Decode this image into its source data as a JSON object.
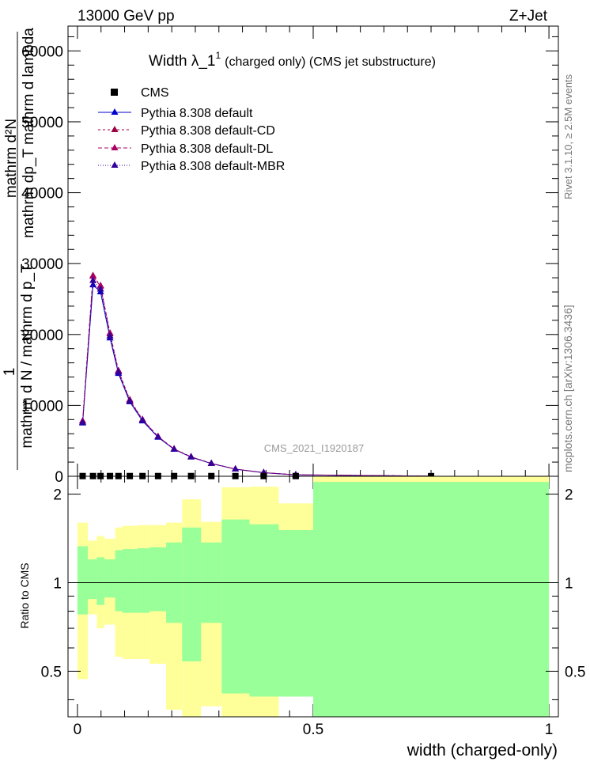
{
  "header": {
    "left": "13000 GeV pp",
    "right": "Z+Jet"
  },
  "title": {
    "main": "Width λ_1",
    "sup": "1",
    "suffix": "(charged only) (CMS jet substructure)"
  },
  "side": {
    "rivet": "Rivet 3.1.10, ≥ 2.5M events",
    "mcplots": "mcplots.cern.ch [arXiv:1306.3436]"
  },
  "analysis_tag": "CMS_2021_I1920187",
  "ylabel_top": {
    "frac_num": "1",
    "line1": "mathrm d²N",
    "line2": "mathrm dp_T mathrm d lambda",
    "line3": "mathrm d N / mathrm d p_T"
  },
  "ylabel_bottom": "Ratio to CMS",
  "xlabel": "width (charged-only)",
  "legend": {
    "cms": "CMS",
    "default": "Pythia 8.308 default",
    "cd": "Pythia 8.308 default-CD",
    "dl": "Pythia 8.308 default-DL",
    "mbr": "Pythia 8.308 default-MBR"
  },
  "colors": {
    "cms": "#000000",
    "default": "#0000cc",
    "cd": "#990044",
    "dl": "#aa0066",
    "mbr": "#330099",
    "band_inner": "#99ff99",
    "band_outer": "#ffff99"
  },
  "chart_data": {
    "type": "line",
    "xlim": [
      -0.02,
      1.02
    ],
    "ylim_top": [
      0,
      63500
    ],
    "ylim_ratio": [
      0.35,
      2.3
    ],
    "x_ticks": [
      "0",
      "0.5",
      "1"
    ],
    "y_ticks_top": [
      "0",
      "10000",
      "20000",
      "30000",
      "40000",
      "50000",
      "60000"
    ],
    "y_ticks_ratio": [
      "0.5",
      "1",
      "2"
    ],
    "x": [
      0.011,
      0.033,
      0.049,
      0.069,
      0.087,
      0.111,
      0.138,
      0.171,
      0.205,
      0.241,
      0.284,
      0.335,
      0.395,
      0.463,
      0.75
    ],
    "cms_values": [
      30,
      30,
      30,
      30,
      30,
      30,
      30,
      30,
      30,
      30,
      30,
      30,
      30,
      30,
      20
    ],
    "series": [
      {
        "name": "Pythia 8.308 default",
        "values": [
          7500,
          27000,
          26000,
          19500,
          14500,
          10500,
          7800,
          5500,
          3800,
          2700,
          1800,
          1000,
          500,
          200,
          20
        ]
      },
      {
        "name": "Pythia 8.308 default-CD",
        "values": [
          7800,
          28300,
          26900,
          20200,
          14900,
          10800,
          8000,
          5600,
          3850,
          2750,
          1820,
          1020,
          510,
          210,
          20
        ]
      },
      {
        "name": "Pythia 8.308 default-DL",
        "values": [
          7800,
          28200,
          26800,
          20100,
          14800,
          10700,
          8000,
          5600,
          3850,
          2750,
          1820,
          1020,
          510,
          210,
          20
        ]
      },
      {
        "name": "Pythia 8.308 default-MBR",
        "values": [
          7600,
          27600,
          26400,
          19800,
          14700,
          10600,
          7900,
          5550,
          3820,
          2720,
          1810,
          1010,
          505,
          205,
          20
        ]
      }
    ],
    "ratio_bins": [
      0.0,
      0.022,
      0.041,
      0.057,
      0.08,
      0.095,
      0.127,
      0.153,
      0.188,
      0.222,
      0.262,
      0.306,
      0.365,
      0.427,
      0.5,
      1.0
    ],
    "band_inner": [
      [
        0.78,
        1.33
      ],
      [
        0.88,
        1.2
      ],
      [
        0.84,
        1.22
      ],
      [
        0.89,
        1.2
      ],
      [
        0.8,
        1.29
      ],
      [
        0.79,
        1.3
      ],
      [
        0.79,
        1.31
      ],
      [
        0.8,
        1.32
      ],
      [
        0.73,
        1.37
      ],
      [
        0.54,
        1.54
      ],
      [
        0.73,
        1.37
      ],
      [
        0.42,
        1.64
      ],
      [
        0.41,
        1.58
      ],
      [
        0.41,
        1.51
      ],
      [
        0.35,
        2.2
      ]
    ],
    "band_outer": [
      [
        0.47,
        1.6
      ],
      [
        0.78,
        1.39
      ],
      [
        0.7,
        1.44
      ],
      [
        0.72,
        1.41
      ],
      [
        0.56,
        1.54
      ],
      [
        0.55,
        1.56
      ],
      [
        0.55,
        1.57
      ],
      [
        0.53,
        1.57
      ],
      [
        0.37,
        1.6
      ],
      [
        0.35,
        1.92
      ],
      [
        0.38,
        1.61
      ],
      [
        0.35,
        2.11
      ],
      [
        0.35,
        2.12
      ],
      [
        0.62,
        1.86
      ],
      [
        0.35,
        2.3
      ]
    ],
    "ratio_reference": 1
  }
}
